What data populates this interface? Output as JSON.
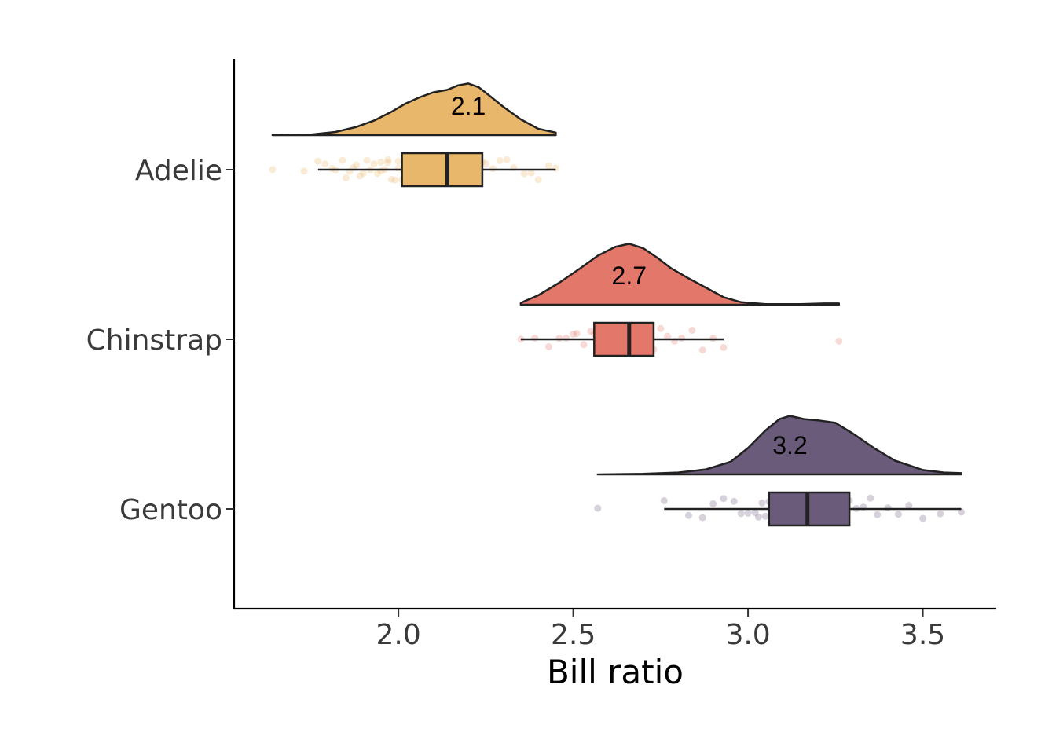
{
  "chart_data": {
    "type": "raincloud",
    "xlabel": "Bill ratio",
    "ylabel": "",
    "xlim": [
      1.53,
      3.71
    ],
    "xticks": [
      2.0,
      2.5,
      3.0,
      3.5
    ],
    "xtick_labels": [
      "2.0",
      "2.5",
      "3.0",
      "3.5"
    ],
    "grid": false,
    "legend": "none",
    "categories": [
      "Adelie",
      "Chinstrap",
      "Gentoo"
    ],
    "series": [
      {
        "name": "Adelie",
        "color": "#E9B76B",
        "mean_label": "2.1",
        "box": {
          "whisker_low": 1.77,
          "q1": 2.01,
          "median": 2.14,
          "q3": 2.24,
          "whisker_high": 2.45
        },
        "range": [
          1.64,
          2.45
        ],
        "density": [
          [
            1.64,
            0.0
          ],
          [
            1.75,
            0.01
          ],
          [
            1.82,
            0.05
          ],
          [
            1.88,
            0.13
          ],
          [
            1.93,
            0.23
          ],
          [
            1.98,
            0.37
          ],
          [
            2.02,
            0.5
          ],
          [
            2.06,
            0.6
          ],
          [
            2.1,
            0.68
          ],
          [
            2.14,
            0.72
          ],
          [
            2.17,
            0.79
          ],
          [
            2.2,
            0.82
          ],
          [
            2.23,
            0.76
          ],
          [
            2.26,
            0.63
          ],
          [
            2.3,
            0.45
          ],
          [
            2.35,
            0.25
          ],
          [
            2.4,
            0.1
          ],
          [
            2.45,
            0.04
          ]
        ],
        "points": [
          1.64,
          1.73,
          1.77,
          1.79,
          1.81,
          1.82,
          1.84,
          1.85,
          1.86,
          1.87,
          1.88,
          1.89,
          1.9,
          1.91,
          1.92,
          1.93,
          1.94,
          1.95,
          1.95,
          1.96,
          1.97,
          1.97,
          1.98,
          1.99,
          2.0,
          2.0,
          2.01,
          2.02,
          2.02,
          2.03,
          2.04,
          2.05,
          2.05,
          2.06,
          2.07,
          2.08,
          2.08,
          2.09,
          2.1,
          2.11,
          2.12,
          2.13,
          2.14,
          2.15,
          2.16,
          2.17,
          2.18,
          2.19,
          2.2,
          2.21,
          2.22,
          2.23,
          2.24,
          2.25,
          2.27,
          2.29,
          2.31,
          2.33,
          2.36,
          2.38,
          2.4,
          2.43,
          2.45
        ]
      },
      {
        "name": "Chinstrap",
        "color": "#E3776A",
        "mean_label": "2.7",
        "box": {
          "whisker_low": 2.35,
          "q1": 2.56,
          "median": 2.66,
          "q3": 2.73,
          "whisker_high": 2.93
        },
        "range": [
          2.35,
          3.26
        ],
        "density": [
          [
            2.35,
            0.03
          ],
          [
            2.4,
            0.15
          ],
          [
            2.46,
            0.35
          ],
          [
            2.52,
            0.58
          ],
          [
            2.57,
            0.78
          ],
          [
            2.62,
            0.92
          ],
          [
            2.66,
            0.97
          ],
          [
            2.7,
            0.9
          ],
          [
            2.74,
            0.75
          ],
          [
            2.78,
            0.58
          ],
          [
            2.83,
            0.42
          ],
          [
            2.88,
            0.27
          ],
          [
            2.93,
            0.12
          ],
          [
            2.98,
            0.04
          ],
          [
            3.05,
            0.01
          ],
          [
            3.15,
            0.01
          ],
          [
            3.22,
            0.02
          ],
          [
            3.26,
            0.02
          ]
        ],
        "points": [
          2.35,
          2.39,
          2.43,
          2.46,
          2.48,
          2.5,
          2.51,
          2.53,
          2.55,
          2.56,
          2.57,
          2.58,
          2.59,
          2.6,
          2.61,
          2.62,
          2.63,
          2.64,
          2.65,
          2.66,
          2.67,
          2.68,
          2.69,
          2.7,
          2.71,
          2.72,
          2.73,
          2.75,
          2.77,
          2.79,
          2.81,
          2.84,
          2.87,
          2.9,
          2.93,
          3.26
        ]
      },
      {
        "name": "Gentoo",
        "color": "#6B5B7B",
        "mean_label": "3.2",
        "box": {
          "whisker_low": 2.76,
          "q1": 3.06,
          "median": 3.17,
          "q3": 3.29,
          "whisker_high": 3.61
        },
        "range": [
          2.57,
          3.61
        ],
        "density": [
          [
            2.57,
            0.0
          ],
          [
            2.7,
            0.01
          ],
          [
            2.8,
            0.03
          ],
          [
            2.88,
            0.08
          ],
          [
            2.95,
            0.2
          ],
          [
            3.0,
            0.42
          ],
          [
            3.05,
            0.7
          ],
          [
            3.09,
            0.88
          ],
          [
            3.12,
            0.93
          ],
          [
            3.16,
            0.88
          ],
          [
            3.2,
            0.86
          ],
          [
            3.25,
            0.82
          ],
          [
            3.3,
            0.65
          ],
          [
            3.36,
            0.42
          ],
          [
            3.42,
            0.22
          ],
          [
            3.5,
            0.07
          ],
          [
            3.56,
            0.03
          ],
          [
            3.61,
            0.02
          ]
        ],
        "points": [
          2.57,
          2.76,
          2.83,
          2.87,
          2.9,
          2.93,
          2.96,
          2.98,
          3.0,
          3.02,
          3.03,
          3.04,
          3.05,
          3.06,
          3.07,
          3.08,
          3.09,
          3.1,
          3.11,
          3.12,
          3.13,
          3.14,
          3.15,
          3.16,
          3.17,
          3.18,
          3.19,
          3.2,
          3.21,
          3.22,
          3.23,
          3.24,
          3.25,
          3.26,
          3.27,
          3.28,
          3.29,
          3.31,
          3.33,
          3.35,
          3.37,
          3.4,
          3.43,
          3.46,
          3.5,
          3.55,
          3.61
        ]
      }
    ]
  }
}
